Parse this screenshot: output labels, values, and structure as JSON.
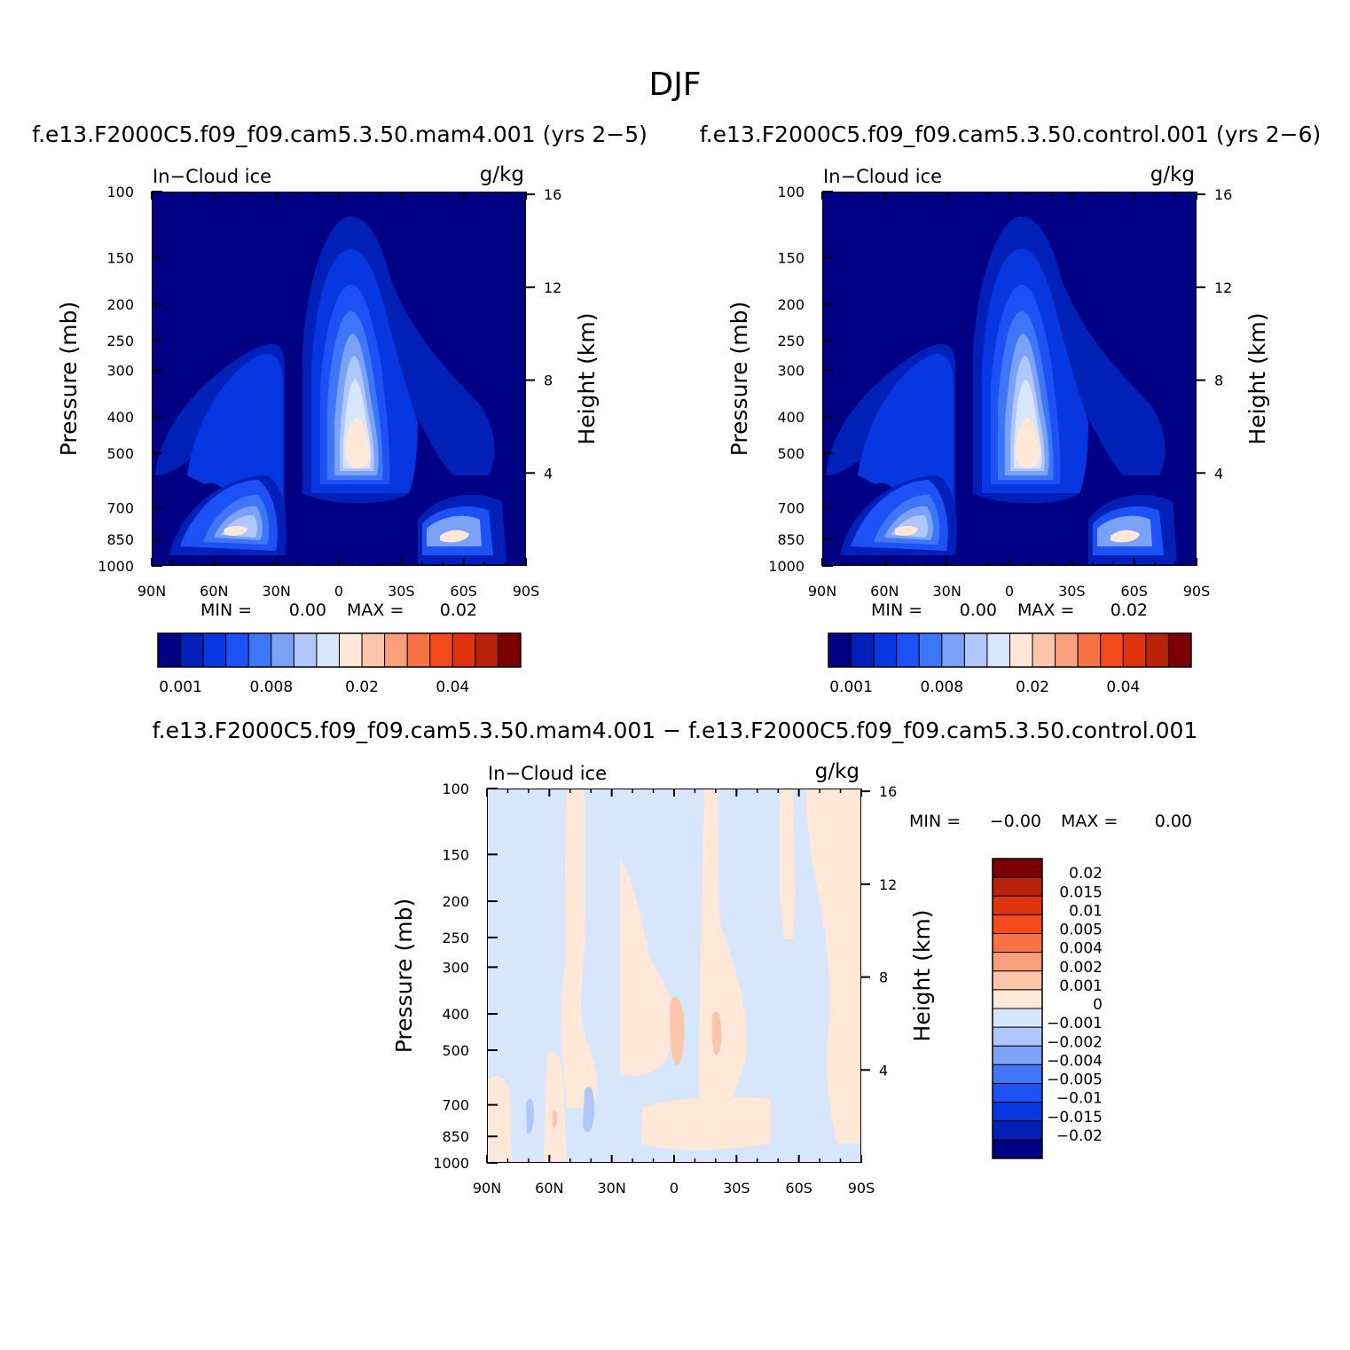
{
  "figure_title": "DJF",
  "chart_data": [
    {
      "type": "heatmap",
      "id": "mam4",
      "title": "f.e13.F2000C5.f09_f09.cam5.3.50.mam4.001 (yrs 2−5)",
      "left_label": "In−Cloud ice",
      "units": "g/kg",
      "xlabel": "",
      "ylabel": "Pressure (mb)",
      "y2label": "Height (km)",
      "xticks": [
        "90N",
        "60N",
        "30N",
        "0",
        "30S",
        "60S",
        "90S"
      ],
      "yticks": [
        "100",
        "150",
        "200",
        "250",
        "300",
        "400",
        "500",
        "700",
        "850",
        "1000"
      ],
      "y2ticks": [
        "16",
        "12",
        "8",
        "4"
      ],
      "min_label": "MIN =",
      "min_value": "0.00",
      "max_label": "MAX =",
      "max_value": "0.02",
      "colorbar_ticks": [
        "0.001",
        "0.008",
        "0.02",
        "0.04"
      ]
    },
    {
      "type": "heatmap",
      "id": "control",
      "title": "f.e13.F2000C5.f09_f09.cam5.3.50.control.001 (yrs 2−6)",
      "left_label": "In−Cloud ice",
      "units": "g/kg",
      "xlabel": "",
      "ylabel": "Pressure (mb)",
      "y2label": "Height (km)",
      "xticks": [
        "90N",
        "60N",
        "30N",
        "0",
        "30S",
        "60S",
        "90S"
      ],
      "yticks": [
        "100",
        "150",
        "200",
        "250",
        "300",
        "400",
        "500",
        "700",
        "850",
        "1000"
      ],
      "y2ticks": [
        "16",
        "12",
        "8",
        "4"
      ],
      "min_label": "MIN =",
      "min_value": "0.00",
      "max_label": "MAX =",
      "max_value": "0.02",
      "colorbar_ticks": [
        "0.001",
        "0.008",
        "0.02",
        "0.04"
      ]
    },
    {
      "type": "heatmap",
      "id": "diff",
      "title": "f.e13.F2000C5.f09_f09.cam5.3.50.mam4.001 − f.e13.F2000C5.f09_f09.cam5.3.50.control.001",
      "left_label": "In−Cloud ice",
      "units": "g/kg",
      "xlabel": "",
      "ylabel": "Pressure (mb)",
      "y2label": "Height (km)",
      "xticks": [
        "90N",
        "60N",
        "30N",
        "0",
        "30S",
        "60S",
        "90S"
      ],
      "yticks": [
        "100",
        "150",
        "200",
        "250",
        "300",
        "400",
        "500",
        "700",
        "850",
        "1000"
      ],
      "y2ticks": [
        "16",
        "12",
        "8",
        "4"
      ],
      "min_label": "MIN =",
      "min_value": "−0.00",
      "max_label": "MAX =",
      "max_value": "0.00",
      "colorbar_ticks": [
        "0.02",
        "0.015",
        "0.01",
        "0.005",
        "0.004",
        "0.002",
        "0.001",
        "0",
        "−0.001",
        "−0.002",
        "−0.004",
        "−0.005",
        "−0.01",
        "−0.015",
        "−0.02"
      ]
    }
  ],
  "colors": {
    "abs_scale": [
      "#000085",
      "#0020b8",
      "#0637e0",
      "#1c52f5",
      "#3d76f7",
      "#7ba2f7",
      "#b0c8f9",
      "#d8e6fb",
      "#ffe8d8",
      "#fcc4a8",
      "#f9a07b",
      "#f87344",
      "#f54b1a",
      "#e0320d",
      "#b82208",
      "#7a0005"
    ],
    "diff_scale": [
      "#000085",
      "#0020b8",
      "#0637e0",
      "#1c52f5",
      "#3d76f7",
      "#7ba2f7",
      "#b0c8f9",
      "#d8e6fb",
      "#ffe8d8",
      "#fcc4a8",
      "#f9a07b",
      "#f87344",
      "#f54b1a",
      "#e0320d",
      "#b82208",
      "#7a0005"
    ]
  }
}
